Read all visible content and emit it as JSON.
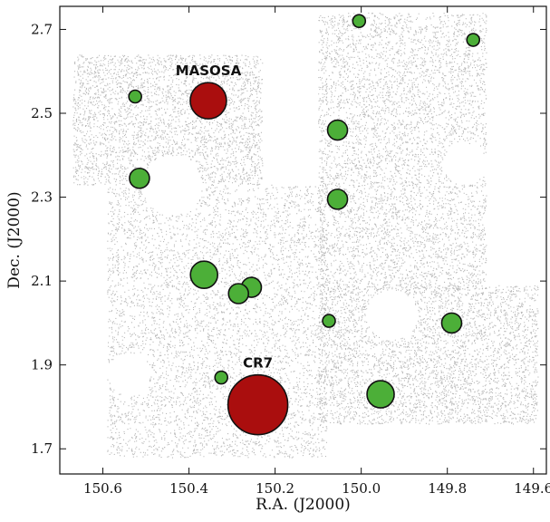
{
  "chart_data": {
    "type": "scatter",
    "title": "",
    "xlabel": "R.A. (J2000)",
    "ylabel": "Dec. (J2000)",
    "xlim": [
      150.7,
      149.57
    ],
    "ylim": [
      1.64,
      2.755
    ],
    "x_ticks": [
      150.6,
      150.4,
      150.2,
      150.0,
      149.8,
      149.6
    ],
    "x_tick_labels": [
      "150.6",
      "150.4",
      "150.2",
      "150.0",
      "149.8",
      "149.6"
    ],
    "y_ticks": [
      1.7,
      1.9,
      2.1,
      2.3,
      2.5,
      2.7
    ],
    "y_tick_labels": [
      "1.7",
      "1.9",
      "2.1",
      "2.3",
      "2.5",
      "2.7"
    ],
    "grid": false,
    "background_field": {
      "color": "#b9b9b9",
      "regions": [
        {
          "ra": [
            150.67,
            150.23
          ],
          "dec": [
            2.33,
            2.64
          ]
        },
        {
          "ra": [
            150.59,
            150.08
          ],
          "dec": [
            1.68,
            2.33
          ]
        },
        {
          "ra": [
            150.1,
            149.71
          ],
          "dec": [
            2.08,
            2.74
          ]
        },
        {
          "ra": [
            149.95,
            149.59
          ],
          "dec": [
            1.76,
            2.09
          ]
        },
        {
          "ra": [
            150.1,
            149.95
          ],
          "dec": [
            1.76,
            2.09
          ]
        }
      ],
      "holes": [
        {
          "ra": 150.44,
          "dec": 2.33,
          "r": 0.07
        },
        {
          "ra": 150.54,
          "dec": 1.88,
          "r": 0.05
        },
        {
          "ra": 149.93,
          "dec": 2.02,
          "r": 0.06
        },
        {
          "ra": 149.76,
          "dec": 2.38,
          "r": 0.05
        }
      ]
    },
    "series": [
      {
        "name": "",
        "color": "#4caf38",
        "points": [
          {
            "ra": 150.525,
            "dec": 2.54,
            "size": "small"
          },
          {
            "ra": 150.515,
            "dec": 2.345,
            "size": "medium"
          },
          {
            "ra": 150.055,
            "dec": 2.46,
            "size": "medium"
          },
          {
            "ra": 150.055,
            "dec": 2.295,
            "size": "medium"
          },
          {
            "ra": 150.005,
            "dec": 2.72,
            "size": "small"
          },
          {
            "ra": 149.74,
            "dec": 2.675,
            "size": "small"
          },
          {
            "ra": 150.365,
            "dec": 2.115,
            "size": "large"
          },
          {
            "ra": 150.255,
            "dec": 2.085,
            "size": "medium"
          },
          {
            "ra": 150.285,
            "dec": 2.07,
            "size": "medium"
          },
          {
            "ra": 150.075,
            "dec": 2.005,
            "size": "small"
          },
          {
            "ra": 149.79,
            "dec": 2.0,
            "size": "medium"
          },
          {
            "ra": 150.325,
            "dec": 1.87,
            "size": "small"
          },
          {
            "ra": 149.955,
            "dec": 1.83,
            "size": "large"
          }
        ]
      },
      {
        "name": "",
        "color": "#aa0e0e",
        "points": [
          {
            "ra": 150.355,
            "dec": 2.53,
            "size": "xlarge",
            "label": "MASOSA"
          },
          {
            "ra": 150.24,
            "dec": 1.805,
            "size": "xxlarge",
            "label": "CR7"
          }
        ]
      }
    ]
  }
}
